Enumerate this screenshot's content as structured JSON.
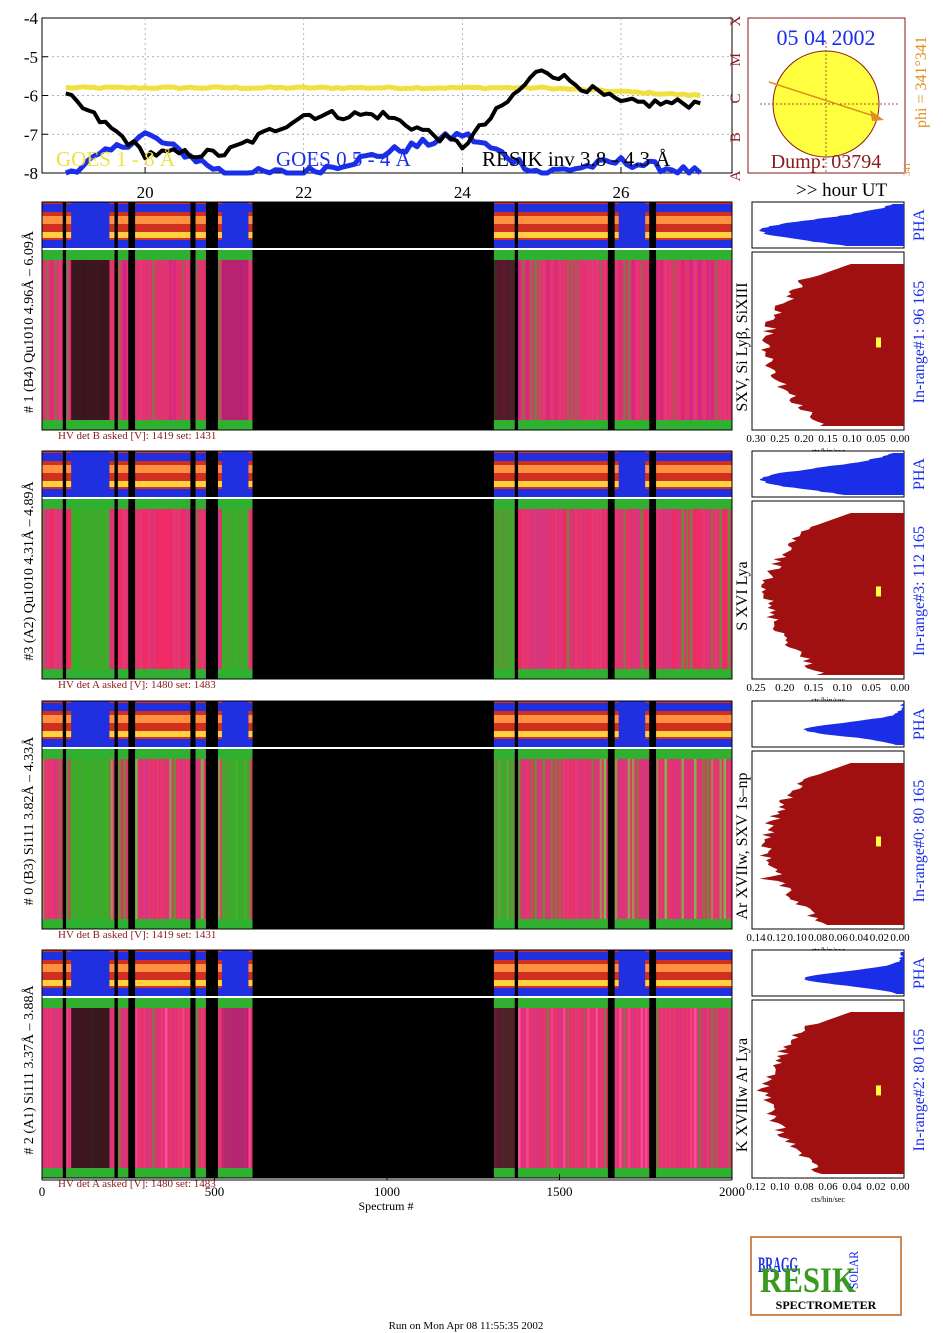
{
  "goes": {
    "y_ticks": [
      "-4",
      "-5",
      "-6",
      "-7",
      "-8"
    ],
    "x_ticks": [
      "20",
      "22",
      "24",
      "26"
    ],
    "classes": [
      "A",
      "B",
      "C",
      "M",
      "X"
    ],
    "legend": {
      "goes_long": "GOES 1 - 8 Å",
      "goes_short": "GOES 0.5 - 4 Å",
      "resik": "RESIK inv 3.8 - 4.3 Å"
    },
    "hour_label": ">> hour UT",
    "colors": {
      "goes_long": "#f0e040",
      "goes_short": "#1a2ee8",
      "resik": "#000000"
    }
  },
  "sun": {
    "date": "05 04 2002",
    "dump": "Dump: 03794",
    "phi": "phi = 341°341",
    "phi_small": "341",
    "disk_color": "#ffff40"
  },
  "panels": [
    {
      "label": "# 1 (B4) Qu1010 4.96Å – 6.09Å",
      "lines": "SXV, Si Lyβ, SiXIII",
      "in_range": "In-range#1:  96 165",
      "hv": "HV det B asked [V]:  1419 set:  1431",
      "pha": "PHA",
      "ticks": [
        "0.30",
        "0.25",
        "0.20",
        "0.15",
        "0.10",
        "0.05",
        "0.00"
      ],
      "xunit": "cts/bin/sec"
    },
    {
      "label": "#3 (A2) Qu1010  4.31Å – 4.89Å",
      "lines": "S XVI Lya",
      "in_range": "In-range#3:  112 165",
      "hv": "HV det A asked [V]:  1480 set:  1483",
      "pha": "PHA",
      "ticks": [
        "0.25",
        "0.20",
        "0.15",
        "0.10",
        "0.05",
        "0.00"
      ],
      "xunit": "cts/bin/sec"
    },
    {
      "label": "# 0 (B3) Si111  3.82Å – 4.33Å",
      "lines": "Ar XVIIw,  SXV 1s–np",
      "in_range": "In-range#0:  80 165",
      "hv": "HV det B asked [V]:  1419 set:  1431",
      "pha": "PHA",
      "ticks": [
        "0.14",
        "0.12",
        "0.10",
        "0.08",
        "0.06",
        "0.04",
        "0.02",
        "0.00"
      ],
      "xunit": "cts/bin/sec"
    },
    {
      "label": "# 2 (A1) Si111  3.37Å – 3.88Å",
      "lines": "K XVIIIw  Ar Lya",
      "in_range": "In-range#2:  80 165",
      "hv": "HV det A asked [V]:  1480 set:  1483",
      "pha": "PHA",
      "ticks": [
        "0.12",
        "0.10",
        "0.08",
        "0.06",
        "0.04",
        "0.02",
        "0.00"
      ],
      "xunit": "cts/bin/sec"
    }
  ],
  "spectrum_axis": {
    "ticks": [
      "0",
      "500",
      "1000",
      "1500",
      "2000"
    ],
    "label": "Spectrum #"
  },
  "logo": {
    "bragg": "BRAGG",
    "resik": "RESIK",
    "solar": "SOLAR",
    "spectrometer": "SPECTROMETER"
  },
  "footer": "Run on Mon Apr 08 11:55:35 2002",
  "chart_data": [
    {
      "type": "line",
      "x": [
        19,
        20,
        21,
        22,
        23,
        24,
        25,
        26,
        27
      ],
      "series": [
        {
          "name": "GOES 1 - 8 Å",
          "values": [
            -5.8,
            -5.8,
            -5.8,
            -5.8,
            -5.8,
            -5.8,
            -5.8,
            -5.9,
            -6.0
          ]
        },
        {
          "name": "GOES 0.5 - 4 Å",
          "values": [
            -8.0,
            -7.0,
            -8.0,
            -8.0,
            -7.5,
            -7.0,
            -8.0,
            -7.7,
            -8.0
          ]
        },
        {
          "name": "RESIK inv 3.8 - 4.3 Å",
          "values": [
            -6.0,
            -7.5,
            -7.5,
            -6.5,
            -6.5,
            -7.3,
            -5.3,
            -6.2,
            -6.2
          ]
        }
      ],
      "xlim": [
        18.7,
        27.4
      ],
      "ylim": [
        -8,
        -4
      ]
    }
  ]
}
